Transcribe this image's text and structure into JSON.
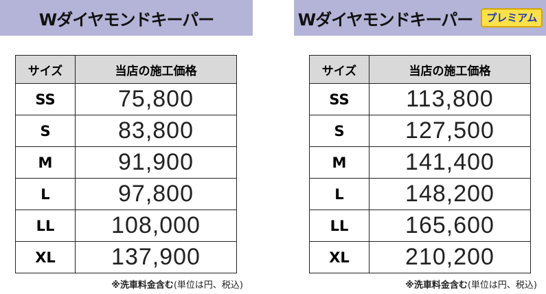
{
  "panels": [
    {
      "title": "Wダイヤモンドキーパー",
      "table": {
        "header": [
          "サイズ",
          "当店の施工価格"
        ],
        "rows": [
          [
            "SS",
            "75,800"
          ],
          [
            "S",
            "83,800"
          ],
          [
            "M",
            "91,900"
          ],
          [
            "L",
            "97,800"
          ],
          [
            "LL",
            "108,000"
          ],
          [
            "XL",
            "137,900"
          ]
        ]
      },
      "note_bold": "※洗車料金含む",
      "note_rest": "(単位は円、税込)"
    },
    {
      "title": "Wダイヤモンドキーパー",
      "badge": "プレミアム",
      "table": {
        "header": [
          "サイズ",
          "当店の施工価格"
        ],
        "rows": [
          [
            "SS",
            "113,800"
          ],
          [
            "S",
            "127,500"
          ],
          [
            "M",
            "141,400"
          ],
          [
            "L",
            "148,200"
          ],
          [
            "LL",
            "165,600"
          ],
          [
            "XL",
            "210,200"
          ]
        ]
      },
      "note_bold": "※洗車料金含む",
      "note_rest": "(単位は円、税込)"
    }
  ]
}
